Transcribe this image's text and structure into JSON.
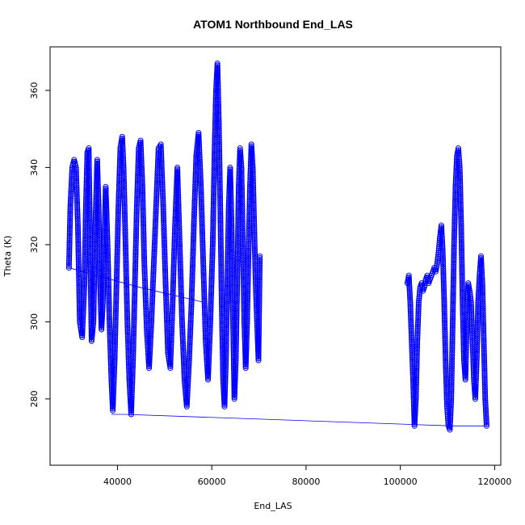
{
  "chart_data": {
    "type": "scatter",
    "title": "ATOM1 Northbound End_LAS",
    "xlabel": "End_LAS",
    "ylabel": "Theta (K)",
    "xlim": [
      25700,
      121300
    ],
    "ylim": [
      262.8,
      371.3
    ],
    "x_ticks": [
      40000,
      60000,
      80000,
      100000,
      120000
    ],
    "y_ticks": [
      280,
      300,
      320,
      340,
      360
    ],
    "x_tick_labels": [
      "40000",
      "60000",
      "80000",
      "100000",
      "120000"
    ],
    "y_tick_labels": [
      "280",
      "300",
      "320",
      "340",
      "360"
    ],
    "grid": false,
    "legend": "none",
    "marker": "open-circle",
    "color": "#0000ff",
    "series": [
      {
        "points_x": [
          29700,
          30000,
          30400,
          30800,
          31200,
          31600,
          32000,
          32500,
          33000,
          33300,
          33600,
          33900,
          34200,
          34500,
          34900,
          35300,
          35700,
          36000,
          36300,
          36600,
          36900,
          37200,
          37500,
          37900,
          38300,
          38700,
          39000,
          39400,
          39800,
          40200,
          40600,
          41000,
          41300,
          41700,
          42100,
          42500,
          42900,
          43300,
          43700,
          44100,
          44500,
          44900,
          45300,
          45700,
          46200,
          46700,
          47200,
          47700,
          48200,
          48700,
          49200,
          49700,
          50200,
          50700,
          51200,
          51700,
          52200,
          52700,
          53200,
          53700,
          54200,
          54700,
          55200,
          55700,
          56200,
          56700,
          57200,
          57700,
          58200,
          58700,
          59200,
          59700,
          60200,
          60600,
          60900,
          61200,
          61500,
          61800,
          62100,
          62400,
          62700,
          63000,
          63300,
          63600,
          63900,
          64200,
          64500,
          64800,
          65100,
          65400,
          65700,
          66000,
          66300,
          66600,
          66900,
          67200,
          67500,
          67800,
          68100,
          68400,
          68700,
          69000,
          69300,
          69600,
          69900,
          70200
        ],
        "points_y": [
          314,
          330,
          340,
          342,
          340,
          325,
          300,
          296,
          310,
          330,
          344,
          345,
          320,
          295,
          300,
          325,
          342,
          330,
          310,
          298,
          305,
          320,
          335,
          320,
          300,
          285,
          277,
          290,
          310,
          330,
          345,
          348,
          340,
          320,
          300,
          285,
          276,
          290,
          310,
          330,
          345,
          347,
          335,
          315,
          298,
          288,
          300,
          315,
          330,
          345,
          346,
          330,
          310,
          292,
          288,
          305,
          325,
          340,
          320,
          300,
          285,
          278,
          290,
          305,
          325,
          343,
          349,
          335,
          315,
          295,
          285,
          300,
          320,
          345,
          360,
          367,
          352,
          330,
          305,
          285,
          278,
          290,
          310,
          330,
          340,
          325,
          300,
          280,
          290,
          310,
          335,
          345,
          340,
          320,
          300,
          288,
          300,
          318,
          335,
          346,
          340,
          325,
          310,
          300,
          290,
          317
        ]
      },
      {
        "points_x": [
          101500,
          101800,
          102100,
          102400,
          102700,
          103000,
          103300,
          103600,
          103900,
          104200,
          104500,
          104800,
          105100,
          105400,
          105700,
          106000,
          106300,
          106600,
          106900,
          107200,
          107500,
          107800,
          108100,
          108400,
          108700,
          109000,
          109300,
          109600,
          109900,
          110200,
          110500,
          110800,
          111100,
          111400,
          111700,
          112000,
          112300,
          112600,
          112900,
          113200,
          113500,
          113800,
          114100,
          114400,
          114700,
          115000,
          115300,
          115600,
          115900,
          116200,
          116500,
          116800,
          117100,
          117400,
          117700,
          118000,
          118300
        ],
        "points_y": [
          310,
          312,
          305,
          295,
          285,
          273,
          280,
          295,
          305,
          309,
          310,
          308,
          309,
          311,
          312,
          310,
          311,
          312,
          313,
          314,
          313,
          315,
          318,
          322,
          325,
          318,
          305,
          290,
          278,
          273,
          272,
          280,
          300,
          320,
          335,
          343,
          345,
          340,
          325,
          305,
          290,
          285,
          300,
          310,
          308,
          305,
          295,
          285,
          280,
          290,
          305,
          312,
          317,
          310,
          295,
          280,
          273
        ]
      }
    ],
    "connector_lines": [
      {
        "x": [
          29700,
          44500,
          58500
        ],
        "y": [
          314,
          309,
          305
        ]
      },
      {
        "x": [
          38700,
          41500,
          111000,
          118300
        ],
        "y": [
          276,
          276,
          273,
          273
        ]
      }
    ]
  }
}
